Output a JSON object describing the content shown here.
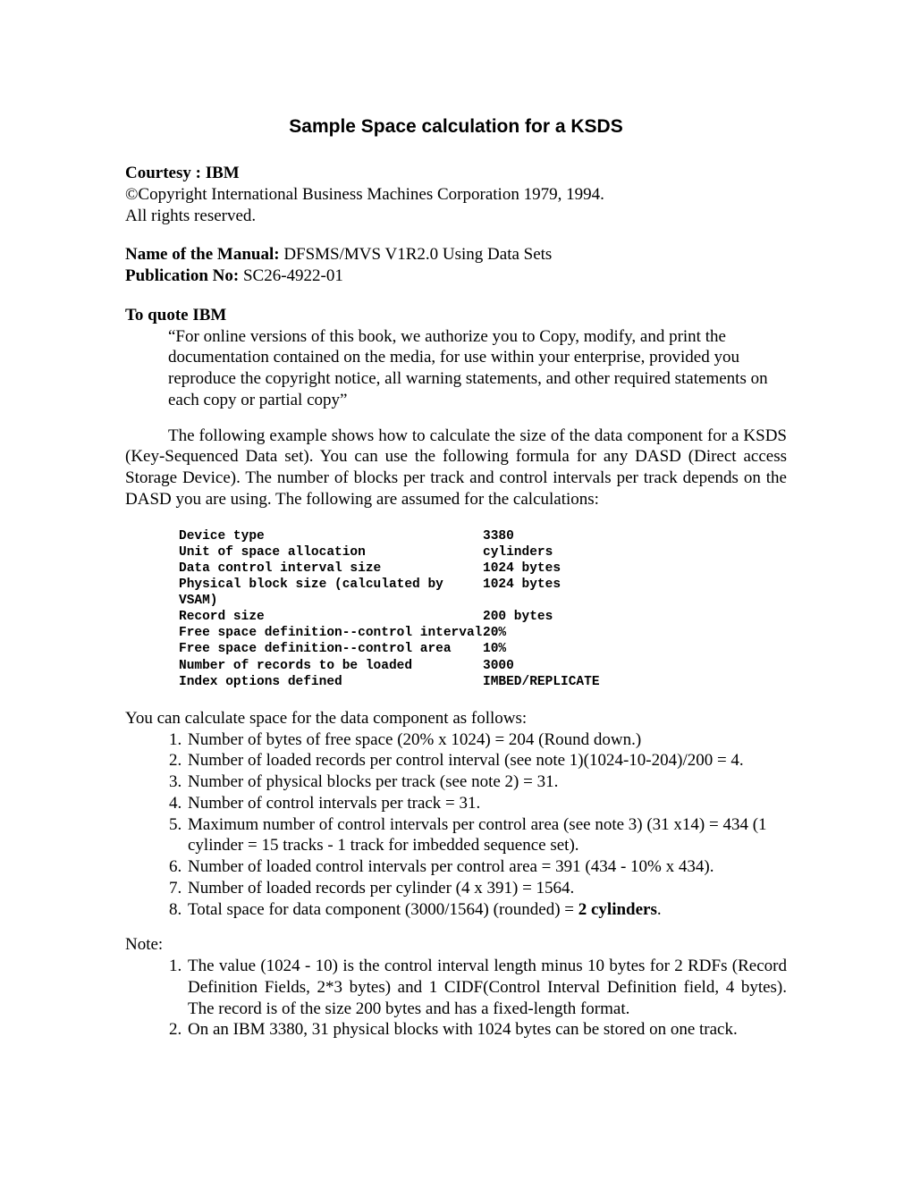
{
  "title": "Sample Space calculation for a KSDS",
  "courtesy_label": "Courtesy : IBM",
  "copyright_line1": "©Copyright International Business Machines Corporation 1979, 1994.",
  "copyright_line2": "All rights reserved.",
  "manual_label": "Name of the Manual: ",
  "manual_value": "DFSMS/MVS V1R2.0 Using Data Sets",
  "pub_label": "Publication No: ",
  "pub_value": "SC26-4922-01",
  "quote_heading": "To quote IBM",
  "quote_text": "“For online versions of this book, we authorize you to Copy, modify, and print the documentation contained on the media, for use within your enterprise, provided you reproduce the copyright notice, all warning statements, and other required statements on each  copy or partial copy”",
  "intro_para": "The following example shows how to calculate the size of the data component for a KSDS (Key-Sequenced Data set). You can use the following formula for any DASD (Direct access Storage Device). The number of blocks per track and control intervals per track depends on the DASD you are using. The following are assumed for the calculations:",
  "specs": [
    {
      "label": "Device type",
      "value": "3380"
    },
    {
      "label": "Unit of space allocation",
      "value": "cylinders"
    },
    {
      "label": "Data control interval size",
      "value": "1024 bytes"
    },
    {
      "label": "Physical block size (calculated by VSAM)",
      "value": "1024 bytes"
    },
    {
      "label": "Record size",
      "value": "200 bytes"
    },
    {
      "label": "Free space definition--control interval",
      "value": "20%"
    },
    {
      "label": "Free space definition--control area",
      "value": "10%"
    },
    {
      "label": "Number of records to be loaded",
      "value": "3000"
    },
    {
      "label": "Index options defined",
      "value": "IMBED/REPLICATE"
    }
  ],
  "calc_intro": "You can calculate space for the data component as follows:",
  "calc_items": [
    "Number of bytes of free space (20% x 1024) = 204 (Round down.)",
    "Number of loaded records per control interval (see note 1)(1024-10-204)/200 = 4.",
    "Number of physical blocks per track (see note 2) = 31.",
    "Number of control intervals per track = 31.",
    "Maximum number of control intervals per control area (see note 3) (31 x14) = 434 (1 cylinder = 15 tracks - 1 track for imbedded sequence set).",
    "Number of loaded control intervals per control area = 391 (434 - 10% x 434).",
    "Number of loaded records per cylinder  (4 x 391) = 1564."
  ],
  "calc_item8_prefix": "Total space for data component  (3000/1564) (rounded) = ",
  "calc_item8_bold": "2 cylinders",
  "calc_item8_suffix": ".",
  "note_heading": "Note:",
  "note_items": [
    "The value (1024 - 10) is the control interval length minus 10 bytes for 2 RDFs (Record Definition Fields, 2*3 bytes) and 1 CIDF(Control Interval Definition field, 4 bytes). The record is of the size 200 bytes and has a fixed-length format.",
    "On an IBM 3380, 31 physical blocks with 1024 bytes can be stored on one track."
  ]
}
